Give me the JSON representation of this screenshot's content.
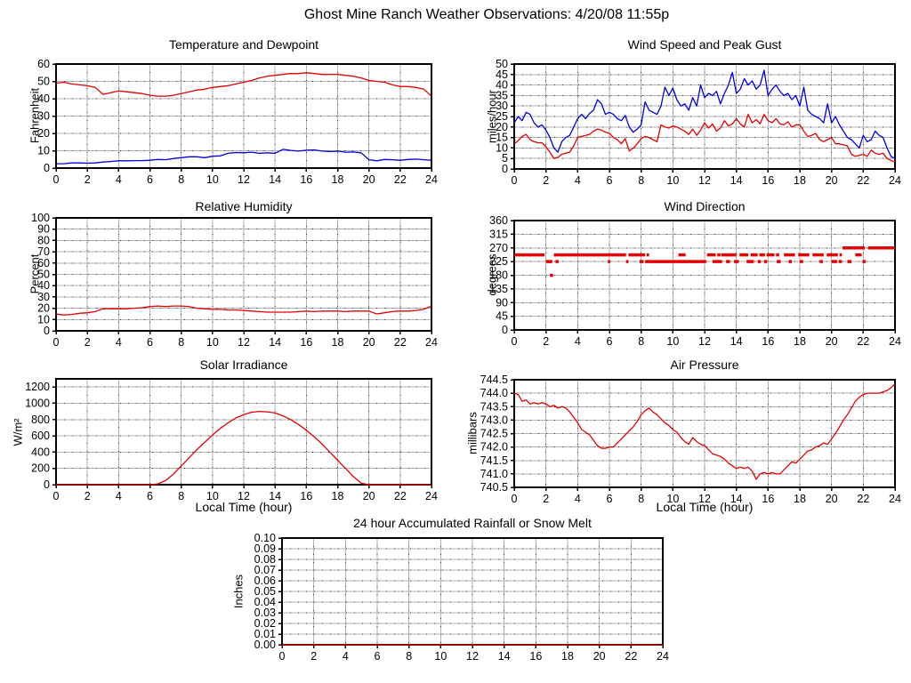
{
  "page": {
    "title": "Ghost Mine Ranch Weather Observations: 4/20/08 11:55p"
  },
  "colors": {
    "series_red": "#e60000",
    "series_blue": "#0000e6",
    "grid": "#b3b3b3",
    "axis": "#000000"
  },
  "chart_data": [
    {
      "type": "line",
      "title": "Temperature and Dewpoint",
      "ylabel": "Fahrenheit",
      "xlabel": "",
      "xlim": [
        0,
        24
      ],
      "xtick_step": 2,
      "ylim": [
        0,
        60
      ],
      "ytick_step": 10,
      "ytick_decimals": 0,
      "grid": true,
      "legend": "none",
      "series": [
        {
          "name": "temperature",
          "color": "#e60000",
          "values": [
            49,
            49.5,
            48.5,
            48,
            47.5,
            46.5,
            42.5,
            43.5,
            44.5,
            44,
            43.5,
            43,
            42,
            41.5,
            41.5,
            42,
            43,
            44,
            45,
            45.5,
            46.5,
            47,
            47.5,
            48.5,
            49.5,
            50.5,
            52,
            53,
            53.5,
            54,
            54.5,
            54.5,
            55,
            54.5,
            54,
            54,
            54,
            53.5,
            53,
            52,
            50.5,
            50,
            49.5,
            48,
            47,
            47,
            46.5,
            45.5,
            41.5
          ]
        },
        {
          "name": "dewpoint",
          "color": "#0000e6",
          "values": [
            2.5,
            2.5,
            3,
            3,
            2.8,
            3,
            3.5,
            3.8,
            4.2,
            4.2,
            4.3,
            4.3,
            4.5,
            5,
            4.8,
            5.5,
            6,
            6.5,
            6.5,
            6,
            6.8,
            7,
            8.5,
            9,
            8.8,
            9.2,
            8.5,
            8.8,
            8.5,
            10.8,
            10.2,
            9.8,
            10.3,
            10.5,
            9.8,
            9.5,
            9.8,
            9.2,
            9.3,
            8.8,
            4.8,
            4.2,
            5,
            4.8,
            4.5,
            5,
            5.2,
            4.8,
            4.5
          ]
        }
      ]
    },
    {
      "type": "line",
      "title": "Wind Speed and Peak Gust",
      "ylabel": "miles/hour",
      "xlabel": "",
      "xlim": [
        0,
        24
      ],
      "xtick_step": 2,
      "ylim": [
        0,
        50
      ],
      "ytick_step": 5,
      "ytick_decimals": 0,
      "grid": true,
      "legend": "none",
      "series": [
        {
          "name": "peak-gust",
          "color": "#0000e6",
          "values": [
            22,
            25,
            23,
            27,
            26,
            22,
            20,
            21,
            18.5,
            15,
            10,
            8,
            13,
            15,
            16,
            20,
            24,
            26,
            24,
            26.5,
            28,
            33,
            31,
            26,
            27,
            26,
            24,
            23,
            25.5,
            20,
            17.5,
            19,
            21,
            32,
            28,
            27,
            26,
            30,
            39,
            35,
            38.5,
            33,
            30,
            31,
            28,
            34,
            30,
            40,
            34,
            36,
            35,
            37,
            31,
            36,
            40,
            46,
            36,
            38,
            43,
            40,
            42,
            38,
            40,
            47,
            35,
            38,
            40,
            37,
            35,
            36,
            33,
            35,
            30,
            39,
            28,
            26,
            25,
            24,
            22,
            31,
            22,
            25,
            21,
            18,
            15,
            14,
            12,
            10,
            16,
            13,
            14,
            18,
            16,
            15,
            10,
            6,
            5
          ]
        },
        {
          "name": "wind-speed",
          "color": "#e60000",
          "values": [
            12,
            13.5,
            15.5,
            16.5,
            14,
            13,
            12.5,
            12.5,
            10.5,
            8,
            5,
            5.5,
            7,
            7.5,
            8,
            11,
            15,
            15.5,
            16,
            16.5,
            18,
            19,
            18.5,
            17.5,
            17,
            15,
            14,
            12,
            14.5,
            8.5,
            10,
            12,
            14.5,
            15.5,
            15,
            14,
            13,
            21,
            20,
            19.5,
            20.5,
            20,
            19,
            18,
            16.5,
            19,
            16,
            18.5,
            22,
            19.5,
            21.5,
            18,
            19.5,
            23,
            20.5,
            21.5,
            24,
            21.5,
            20,
            26,
            22,
            23.5,
            21.5,
            26,
            23,
            22,
            24,
            21.5,
            21,
            22.5,
            20,
            21,
            21,
            18,
            15.5,
            16,
            17,
            14,
            13,
            14,
            15,
            12,
            12,
            11.5,
            11,
            7,
            6,
            6.5,
            7,
            6,
            9,
            7.5,
            7,
            7.5,
            5,
            4,
            3.5
          ]
        }
      ]
    },
    {
      "type": "line",
      "title": "Relative Humidity",
      "ylabel": "Percent",
      "xlabel": "",
      "xlim": [
        0,
        24
      ],
      "xtick_step": 2,
      "ylim": [
        0,
        100
      ],
      "ytick_step": 10,
      "ytick_decimals": 0,
      "grid": true,
      "legend": "none",
      "series": [
        {
          "name": "relative-humidity",
          "color": "#e60000",
          "values": [
            15,
            14,
            14.5,
            15.5,
            16,
            17,
            19.5,
            19.5,
            19.5,
            19.5,
            20,
            20.5,
            21.5,
            22,
            21.5,
            22,
            22,
            21.5,
            20,
            19.5,
            19,
            19,
            18.5,
            18.5,
            18,
            17.5,
            17,
            16.5,
            16.5,
            16.5,
            16.5,
            17,
            17.5,
            17,
            17.5,
            17.5,
            17.5,
            17,
            17.5,
            17.5,
            17.5,
            15,
            16,
            17,
            17.5,
            17.5,
            18,
            19,
            22
          ]
        }
      ]
    },
    {
      "type": "scatter",
      "title": "Wind Direction",
      "ylabel": "degrees",
      "xlabel": "",
      "xlim": [
        0,
        24
      ],
      "xtick_step": 2,
      "ylim": [
        0,
        360
      ],
      "ytick_step": 45,
      "ytick_decimals": 0,
      "grid": true,
      "legend": "none",
      "series": [
        {
          "name": "wind-direction",
          "color": "#e60000",
          "segments": [
            [
              0,
              1.9,
              247
            ],
            [
              2.5,
              7.05,
              247
            ],
            [
              7.2,
              8.25,
              247
            ],
            [
              8.35,
              8.5,
              247
            ],
            [
              10.35,
              10.8,
              247
            ],
            [
              12.15,
              12.7,
              247
            ],
            [
              12.8,
              13.0,
              247
            ],
            [
              13.05,
              14.0,
              247
            ],
            [
              14.2,
              14.75,
              247
            ],
            [
              14.9,
              15.35,
              247
            ],
            [
              15.45,
              15.8,
              247
            ],
            [
              15.9,
              16.4,
              247
            ],
            [
              16.5,
              16.7,
              247
            ],
            [
              17.0,
              17.7,
              247
            ],
            [
              17.9,
              18.6,
              247
            ],
            [
              18.8,
              19.5,
              247
            ],
            [
              19.7,
              20.4,
              247
            ],
            [
              20.5,
              20.65,
              247
            ],
            [
              21.5,
              21.9,
              247
            ],
            [
              2.0,
              2.4,
              225
            ],
            [
              2.6,
              2.8,
              225
            ],
            [
              5.9,
              6.05,
              225
            ],
            [
              7.05,
              7.2,
              225
            ],
            [
              7.9,
              8.15,
              225
            ],
            [
              8.25,
              12.1,
              225
            ],
            [
              12.5,
              13.1,
              225
            ],
            [
              13.35,
              13.6,
              225
            ],
            [
              13.85,
              14.15,
              225
            ],
            [
              14.65,
              15.1,
              225
            ],
            [
              15.35,
              15.55,
              225
            ],
            [
              15.75,
              15.95,
              225
            ],
            [
              16.55,
              16.8,
              225
            ],
            [
              17.3,
              17.5,
              225
            ],
            [
              18.0,
              18.2,
              225
            ],
            [
              19.25,
              19.45,
              225
            ],
            [
              20.0,
              20.35,
              225
            ],
            [
              20.45,
              20.65,
              225
            ],
            [
              21.0,
              21.25,
              225
            ],
            [
              21.95,
              22.15,
              225
            ],
            [
              2.25,
              2.45,
              180
            ],
            [
              20.7,
              22.1,
              270
            ],
            [
              22.3,
              24,
              270
            ]
          ]
        }
      ]
    },
    {
      "type": "line",
      "title": "Solar Irradiance",
      "ylabel": "W/m²",
      "xlabel": "Local Time (hour)",
      "xlim": [
        0,
        24
      ],
      "xtick_step": 2,
      "ylim": [
        0,
        1300
      ],
      "ytick_step": 200,
      "ytick_decimals": 0,
      "grid": true,
      "legend": "none",
      "series": [
        {
          "name": "solar-irradiance",
          "color": "#e60000",
          "values": [
            0,
            0,
            0,
            0,
            0,
            0,
            0,
            0,
            0,
            0,
            0,
            0,
            0,
            10,
            50,
            130,
            230,
            330,
            430,
            520,
            610,
            690,
            760,
            820,
            860,
            890,
            900,
            895,
            880,
            845,
            800,
            740,
            670,
            590,
            500,
            400,
            300,
            200,
            100,
            20,
            0,
            0,
            0,
            0,
            0,
            0,
            0,
            0,
            0
          ]
        }
      ]
    },
    {
      "type": "line",
      "title": "Air Pressure",
      "ylabel": "millibars",
      "xlabel": "Local Time (hour)",
      "xlim": [
        0,
        24
      ],
      "xtick_step": 2,
      "ylim": [
        740.5,
        744.5
      ],
      "ytick_step": 0.5,
      "ytick_decimals": 1,
      "grid": true,
      "legend": "none",
      "series": [
        {
          "name": "air-pressure",
          "color": "#e60000",
          "values": [
            744.0,
            743.95,
            743.7,
            743.75,
            743.6,
            743.65,
            743.6,
            743.65,
            743.6,
            743.5,
            743.55,
            743.45,
            743.5,
            743.45,
            743.3,
            743.1,
            742.9,
            742.65,
            742.55,
            742.45,
            742.25,
            742.05,
            741.95,
            741.95,
            742.0,
            742.0,
            742.15,
            742.3,
            742.45,
            742.6,
            742.75,
            742.95,
            743.2,
            743.35,
            743.45,
            743.3,
            743.2,
            743.05,
            742.9,
            742.8,
            742.65,
            742.55,
            742.35,
            742.2,
            742.1,
            742.35,
            742.2,
            742.1,
            742.05,
            741.9,
            741.75,
            741.7,
            741.65,
            741.55,
            741.4,
            741.3,
            741.2,
            741.25,
            741.2,
            741.25,
            741.1,
            740.8,
            741.0,
            741.05,
            741.0,
            741.05,
            741.0,
            741.0,
            741.15,
            741.3,
            741.45,
            741.4,
            741.55,
            741.7,
            741.85,
            741.9,
            742.0,
            742.05,
            742.15,
            742.1,
            742.3,
            742.5,
            742.75,
            743.0,
            743.2,
            743.45,
            743.7,
            743.85,
            743.95,
            744.0,
            744.0,
            744.0,
            744.0,
            744.05,
            744.1,
            744.2,
            744.35
          ]
        }
      ]
    },
    {
      "type": "line",
      "title": "24 hour Accumulated Rainfall or Snow Melt",
      "ylabel": "Inches",
      "xlabel": "",
      "xlim": [
        0,
        24
      ],
      "xtick_step": 2,
      "ylim": [
        0,
        0.1
      ],
      "ytick_step": 0.01,
      "ytick_decimals": 2,
      "grid": true,
      "legend": "none",
      "series": [
        {
          "name": "accumulated-rainfall",
          "color": "#e60000",
          "values": [
            0,
            0,
            0,
            0,
            0,
            0,
            0,
            0,
            0,
            0,
            0,
            0,
            0,
            0,
            0,
            0,
            0,
            0,
            0,
            0,
            0,
            0,
            0,
            0,
            0
          ]
        }
      ]
    }
  ]
}
